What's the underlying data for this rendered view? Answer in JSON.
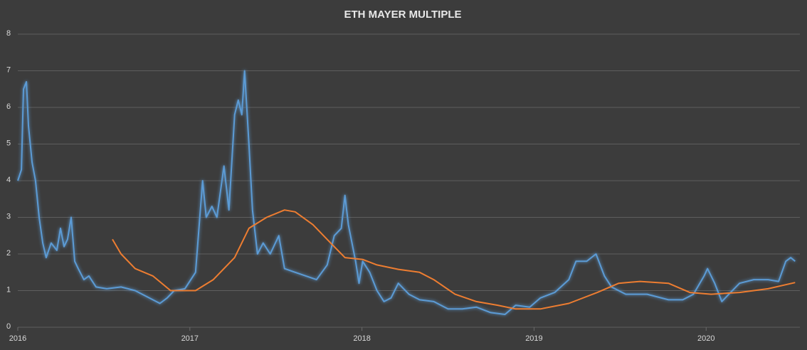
{
  "chart_data": {
    "type": "line",
    "title": "ETH MAYER MULTIPLE",
    "xlim": [
      2016,
      2020.52
    ],
    "xticks": [
      2016,
      2017,
      2018,
      2019,
      2020
    ],
    "ylim": [
      0,
      8
    ],
    "yticks": [
      0,
      1,
      2,
      3,
      4,
      5,
      6,
      7,
      8
    ],
    "grid": true,
    "series": [
      {
        "color": "#5b9bd5",
        "x": [
          2016.0,
          2016.021,
          2016.033,
          2016.05,
          2016.062,
          2016.083,
          2016.103,
          2016.124,
          2016.145,
          2016.165,
          2016.194,
          2016.227,
          2016.248,
          2016.269,
          2016.289,
          2016.31,
          2016.331,
          2016.351,
          2016.384,
          2016.413,
          2016.455,
          2016.517,
          2016.6,
          2016.682,
          2016.764,
          2016.826,
          2016.868,
          2016.909,
          2016.971,
          2017.033,
          2017.074,
          2017.095,
          2017.128,
          2017.157,
          2017.198,
          2017.227,
          2017.26,
          2017.281,
          2017.302,
          2017.318,
          2017.343,
          2017.364,
          2017.393,
          2017.426,
          2017.467,
          2017.517,
          2017.55,
          2017.612,
          2017.674,
          2017.736,
          2017.798,
          2017.839,
          2017.88,
          2017.901,
          2017.921,
          2017.963,
          2017.983,
          2018.004,
          2018.045,
          2018.087,
          2018.128,
          2018.169,
          2018.211,
          2018.273,
          2018.335,
          2018.417,
          2018.5,
          2018.583,
          2018.665,
          2018.748,
          2018.831,
          2018.893,
          2018.975,
          2019.037,
          2019.12,
          2019.202,
          2019.244,
          2019.306,
          2019.36,
          2019.409,
          2019.45,
          2019.533,
          2019.657,
          2019.781,
          2019.864,
          2019.926,
          2019.988,
          2020.008,
          2020.05,
          2020.091,
          2020.132,
          2020.194,
          2020.277,
          2020.36,
          2020.421,
          2020.463,
          2020.492,
          2020.517
        ],
        "values": [
          4.0,
          4.3,
          6.5,
          6.7,
          5.5,
          4.5,
          4.0,
          3.0,
          2.3,
          1.9,
          2.3,
          2.1,
          2.7,
          2.2,
          2.4,
          3.0,
          1.8,
          1.6,
          1.3,
          1.4,
          1.1,
          1.05,
          1.1,
          1.0,
          0.8,
          0.65,
          0.8,
          1.0,
          1.05,
          1.5,
          4.0,
          3.0,
          3.3,
          3.0,
          4.4,
          3.2,
          5.8,
          6.2,
          5.8,
          7.0,
          5.0,
          3.2,
          2.0,
          2.3,
          2.0,
          2.5,
          1.6,
          1.5,
          1.4,
          1.3,
          1.7,
          2.5,
          2.7,
          3.6,
          2.8,
          1.8,
          1.2,
          1.8,
          1.5,
          1.0,
          0.7,
          0.8,
          1.2,
          0.9,
          0.75,
          0.7,
          0.5,
          0.5,
          0.55,
          0.4,
          0.35,
          0.6,
          0.55,
          0.8,
          0.95,
          1.3,
          1.8,
          1.8,
          2.0,
          1.4,
          1.1,
          0.9,
          0.9,
          0.75,
          0.75,
          0.9,
          1.4,
          1.6,
          1.2,
          0.7,
          0.9,
          1.2,
          1.3,
          1.3,
          1.25,
          1.8,
          1.9,
          1.8
        ]
      },
      {
        "color": "#ed7d31",
        "x": [
          2016.55,
          2016.6,
          2016.682,
          2016.785,
          2016.888,
          2017.033,
          2017.136,
          2017.26,
          2017.343,
          2017.446,
          2017.55,
          2017.612,
          2017.715,
          2017.818,
          2017.901,
          2018.004,
          2018.087,
          2018.211,
          2018.335,
          2018.417,
          2018.541,
          2018.665,
          2018.789,
          2018.893,
          2019.037,
          2019.202,
          2019.368,
          2019.492,
          2019.616,
          2019.781,
          2019.905,
          2020.029,
          2020.194,
          2020.36,
          2020.517
        ],
        "values": [
          2.4,
          2.0,
          1.6,
          1.4,
          1.0,
          1.0,
          1.3,
          1.9,
          2.7,
          3.0,
          3.2,
          3.15,
          2.8,
          2.3,
          1.9,
          1.85,
          1.7,
          1.58,
          1.5,
          1.3,
          0.9,
          0.7,
          0.6,
          0.5,
          0.5,
          0.65,
          0.95,
          1.2,
          1.25,
          1.2,
          0.95,
          0.9,
          0.95,
          1.05,
          1.22
        ]
      }
    ]
  }
}
